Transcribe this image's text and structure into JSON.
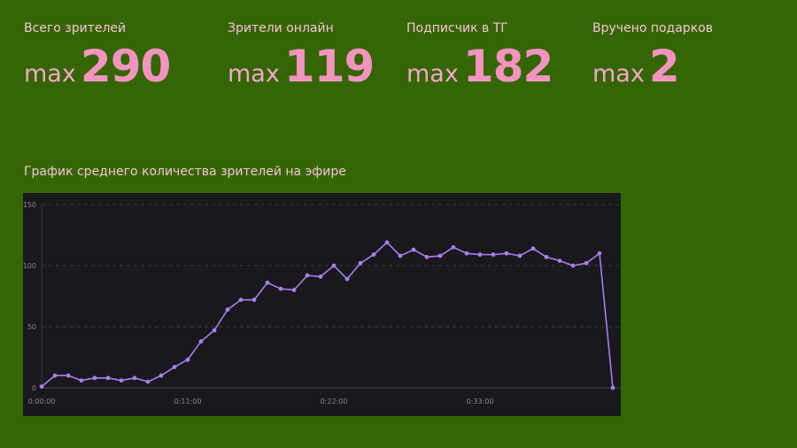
{
  "stats": [
    {
      "label": "Всего зрителей",
      "prefix": "max",
      "value": "290"
    },
    {
      "label": "Зрители онлайн",
      "prefix": "max",
      "value": "119"
    },
    {
      "label": "Подписчик в ТГ",
      "prefix": "max",
      "value": "182"
    },
    {
      "label": "Вручено подарков",
      "prefix": "max",
      "value": "2"
    }
  ],
  "chart_title": "График среднего количества зрителей на эфире",
  "chart_data": {
    "type": "line",
    "title": "График среднего количества зрителей на эфире",
    "ylim": [
      0,
      150
    ],
    "yticks": [
      "0",
      "50",
      "100",
      "150"
    ],
    "xticks": [
      {
        "label": "0:00:00",
        "minute": 0
      },
      {
        "label": "0:11:00",
        "minute": 11
      },
      {
        "label": "0:22:00",
        "minute": 22
      },
      {
        "label": "0:33:00",
        "minute": 33
      }
    ],
    "values": [
      1,
      10,
      10,
      6,
      8,
      8,
      6,
      8,
      5,
      10,
      17,
      23,
      38,
      47,
      64,
      72,
      72,
      86,
      81,
      80,
      92,
      91,
      100,
      89,
      102,
      109,
      119,
      108,
      113,
      107,
      108,
      115,
      110,
      109,
      109,
      110,
      108,
      114,
      107,
      104,
      100,
      102,
      110,
      0
    ],
    "color": "#a77ef0"
  }
}
